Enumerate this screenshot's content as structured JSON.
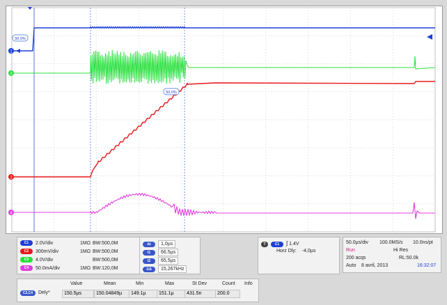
{
  "colors": {
    "ch1": "#1e3fd6",
    "ch2": "#e8181a",
    "ch3": "#27e03c",
    "ch4": "#e03ce0",
    "grid": "#c8c8c8",
    "cursor": "#5a6fe0"
  },
  "screen": {
    "ch1_level_tag": "50.0%",
    "ch2_level_tag": "50.0%"
  },
  "channels": [
    {
      "tag": "C1",
      "vdiv": "2.0V/div",
      "coupling": "1MΩ",
      "bw": "BW:500,0M",
      "color": "#1e3fd6"
    },
    {
      "tag": "C2",
      "vdiv": "300mV/div",
      "coupling": "1MΩ",
      "bw": "BW:500,0M",
      "color": "#e8181a"
    },
    {
      "tag": "C3",
      "vdiv": "4.0V/div",
      "coupling": "",
      "bw": "BW:500,0M",
      "color": "#27e03c"
    },
    {
      "tag": "C4",
      "vdiv": "50.0mA/div",
      "coupling": "1MΩ",
      "bw": "BW:120,0M",
      "color": "#e03ce0"
    }
  ],
  "cursors": {
    "values": [
      "1,0µs",
      "66,5µs",
      "65,5µs",
      "15,267kHz"
    ]
  },
  "trigger": {
    "level": "1.4V",
    "horz_label": "Horz Dly:",
    "horz_value": "-4,0µs"
  },
  "timebase": {
    "div": "50.0µs/div",
    "rate": "100.0MS/s",
    "pt": "10.0ns/pt",
    "mode": "Run",
    "res": "Hi Res",
    "acqs": "200 acqs",
    "rl": "RL:50.0k",
    "trig": "Auto",
    "date": "8 avril, 2013",
    "time": "16:32:07"
  },
  "measurement": {
    "headers": {
      "value": "Value",
      "mean": "Mean",
      "min": "Min",
      "max": "Max",
      "stdev": "St Dev",
      "count": "Count",
      "info": "Info"
    },
    "tag": "C2,C4",
    "name": "Dely*",
    "value": "150.5µs",
    "mean": "150.04849µ",
    "min": "149.1µ",
    "max": "151.1µ",
    "stdev": "431.5n",
    "count": "200.0"
  }
}
